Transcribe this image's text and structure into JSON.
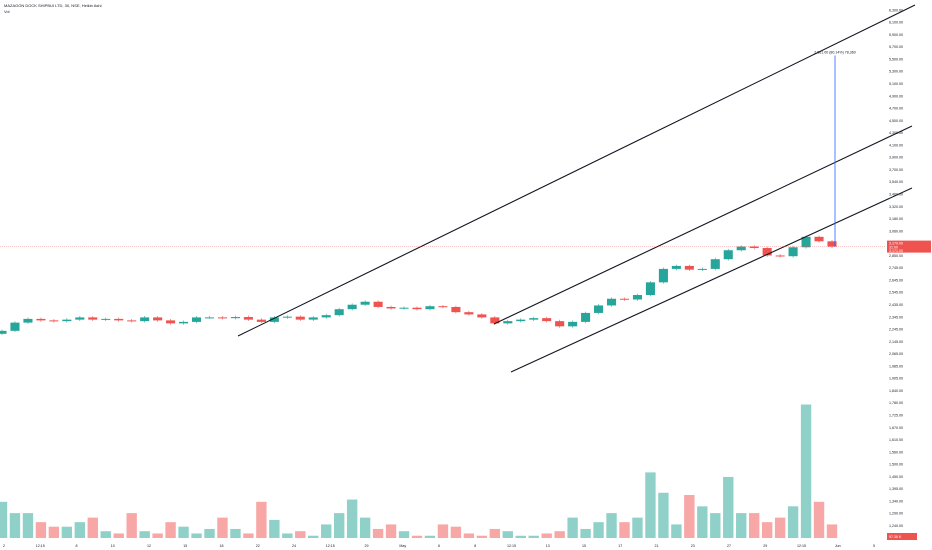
{
  "header": {
    "symbol_line": "MAZAGON DOCK SHIPBUI LTD, 30, NSE, Heikin Ashi",
    "volume_label": "Vol"
  },
  "price_tag": {
    "value": "3,179.00",
    "sub1": "31:00",
    "sub2": "3,171.00"
  },
  "volume_tag": {
    "value": "97.36 K"
  },
  "measure_label": "2,561.00 (80.14%) 78,360",
  "colors": {
    "up": "#26a69a",
    "down": "#ef5350",
    "line": "#131722",
    "measure": "#2962ff",
    "vol_up": "#8fd1c8",
    "vol_down": "#f6a7a6"
  },
  "chart_data": {
    "type": "candlestick",
    "title": "MAZAGON DOCK SHIPBUI LTD, 30, NSE, Heikin Ashi",
    "price_axis_ticks": [
      "6,300.00",
      "6,100.00",
      "5,900.00",
      "5,700.00",
      "5,500.00",
      "5,300.00",
      "5,100.00",
      "4,900.00",
      "4,700.00",
      "4,500.00",
      "4,300.00",
      "4,100.00",
      "3,900.00",
      "3,700.00",
      "3,540.00",
      "3,460.00",
      "3,320.00",
      "3,180.00",
      "3,060.00",
      "2,960.00",
      "2,850.00",
      "2,745.00",
      "2,645.00",
      "2,545.00",
      "2,435.00",
      "2,345.00",
      "2,245.00",
      "2,145.00",
      "2,065.00",
      "1,985.00",
      "1,905.00",
      "1,840.00",
      "1,780.00",
      "1,725.00",
      "1,670.00",
      "1,610.00",
      "1,560.00",
      "1,500.00",
      "1,450.00",
      "1,395.00",
      "1,340.00",
      "1,290.00",
      "1,240.00",
      "1,190.00"
    ],
    "time_axis_ticks": [
      "2",
      "12:15",
      "8",
      "10",
      "12",
      "15",
      "18",
      "22",
      "24",
      "12:15",
      "29",
      "May",
      "6",
      "8",
      "12:15",
      "13",
      "15",
      "17",
      "21",
      "23",
      "27",
      "29",
      "12:15",
      "Jun",
      "5"
    ],
    "trend_lines": [
      {
        "name": "upper channel",
        "from": [
          "22 Apr",
          2240
        ],
        "to": [
          "Jun 5",
          6450
        ]
      },
      {
        "name": "mid channel",
        "from": [
          "8 May",
          2315
        ],
        "to": [
          "Jun 5",
          4170
        ]
      },
      {
        "name": "lower channel",
        "from": [
          "10 May",
          1980
        ],
        "to": [
          "Jun 5",
          3610
        ]
      }
    ],
    "measure": {
      "label": "2,561.00 (80.14%) 78,360",
      "from_price": 3179,
      "to_price": 5740
    },
    "ylim": [
      1190,
      6350
    ],
    "series": [
      {
        "name": "price",
        "values": [
          2050,
          2160,
          2210,
          2190,
          2180,
          2200,
          2230,
          2200,
          2210,
          2190,
          2180,
          2230,
          2190,
          2150,
          2170,
          2230,
          2230,
          2220,
          2235,
          2200,
          2170,
          2230,
          2240,
          2200,
          2230,
          2260,
          2340,
          2400,
          2440,
          2370,
          2350,
          2360,
          2340,
          2380,
          2370,
          2300,
          2270,
          2230,
          2150,
          2180,
          2200,
          2220,
          2180,
          2110,
          2170,
          2290,
          2390,
          2480,
          2470,
          2530,
          2700,
          2880,
          2920,
          2870,
          2880,
          3010,
          3130,
          3180,
          3160,
          3060,
          3050,
          3170,
          3310,
          3250,
          3179
        ]
      }
    ],
    "volume": {
      "name": "Vol",
      "values": [
        1350,
        1300,
        1300,
        1260,
        1240,
        1240,
        1260,
        1280,
        1220,
        1210,
        1300,
        1220,
        1210,
        1260,
        1240,
        1210,
        1230,
        1280,
        1230,
        1210,
        1350,
        1270,
        1210,
        1220,
        1200,
        1250,
        1300,
        1360,
        1280,
        1230,
        1250,
        1220,
        1200,
        1200,
        1250,
        1240,
        1210,
        1200,
        1230,
        1220,
        1200,
        1200,
        1210,
        1220,
        1280,
        1230,
        1260,
        1300,
        1260,
        1280,
        1480,
        1390,
        1250,
        1380,
        1330,
        1300,
        1460,
        1300,
        1300,
        1260,
        1280,
        1330,
        1780,
        1350,
        1250
      ]
    }
  }
}
